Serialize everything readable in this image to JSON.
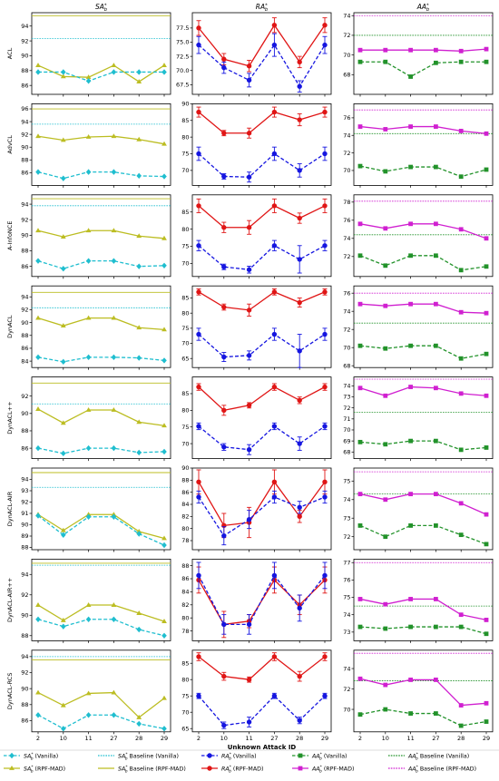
{
  "chart_data": {
    "type": "line",
    "x": [
      "2",
      "10",
      "11",
      "27",
      "28",
      "29"
    ],
    "xlabel": "Unknown Attack ID",
    "columns": [
      "SA*_b",
      "RA*_b",
      "AA*_b"
    ],
    "rows": [
      "ACL",
      "AdvCL",
      "A-InfoNCE",
      "DynACL",
      "DynACL++",
      "DynACL-AIR",
      "DynACL-AIR++",
      "DynACL-RCS"
    ],
    "legend": [
      "SA*_b (Vanilla)",
      "SA*_b Baseline (Vanilla)",
      "RA*_b (Vanilla)",
      "AA*_b (Vanilla)",
      "AA*_b Baseline (Vanilla)",
      "SA*_b (RPF-MAD)",
      "SA*_b Baseline (RPF-MAD)",
      "RA*_b (RPF-MAD)",
      "AA*_b (RPF-MAD)",
      "AA*_b Baseline (RPF-MAD)"
    ],
    "colors": {
      "sa_vanilla": "#1fbecf",
      "sa_rpf": "#bcbd22",
      "ra_vanilla": "#1515e0",
      "ra_rpf": "#e01515",
      "aa_vanilla": "#22922a",
      "aa_rpf": "#d020d0"
    },
    "panels": [
      [
        {
          "ylim": [
            84.8,
            95.8
          ],
          "yticks": [
            86,
            88,
            90,
            92,
            94
          ],
          "baseline_vanilla": 92.3,
          "baseline_rpf": 95.4,
          "vanilla": [
            87.8,
            87.8,
            86.6,
            87.8,
            87.8,
            87.8
          ],
          "rpf": [
            88.7,
            87.2,
            87.1,
            88.7,
            86.5,
            88.7
          ]
        },
        {
          "ylim": [
            65.8,
            80.2
          ],
          "yticks": [
            67.5,
            70.0,
            72.5,
            75.0,
            77.5
          ],
          "vanilla": [
            74.5,
            70.5,
            68.3,
            74.5,
            67.2,
            74.5
          ],
          "vanilla_err": [
            1.5,
            1.0,
            1.2,
            2.0,
            1.0,
            1.5
          ],
          "rpf": [
            77.5,
            72.0,
            70.8,
            78.0,
            71.5,
            78.0
          ],
          "rpf_err": [
            1.3,
            1.0,
            1.0,
            1.3,
            1.0,
            1.3
          ]
        },
        {
          "ylim": [
            66.0,
            74.3
          ],
          "yticks": [
            68,
            70,
            72,
            74
          ],
          "baseline_vanilla": 72.0,
          "baseline_rpf": 74.0,
          "vanilla": [
            69.3,
            69.3,
            67.8,
            69.2,
            69.3,
            69.3
          ],
          "rpf": [
            70.5,
            70.5,
            70.5,
            70.5,
            70.4,
            70.6
          ]
        }
      ],
      [
        {
          "ylim": [
            84.0,
            96.8
          ],
          "yticks": [
            86,
            88,
            90,
            92,
            94,
            96
          ],
          "baseline_vanilla": 93.6,
          "baseline_rpf": 96.0,
          "vanilla": [
            86.1,
            85.1,
            86.1,
            86.1,
            85.5,
            85.4
          ],
          "rpf": [
            91.7,
            91.1,
            91.6,
            91.7,
            91.2,
            90.5
          ]
        },
        {
          "ylim": [
            65.5,
            90.0
          ],
          "yticks": [
            70,
            75,
            80,
            85,
            90
          ],
          "vanilla": [
            75.0,
            68.2,
            68.0,
            75.0,
            70.0,
            75.0
          ],
          "vanilla_err": [
            2.0,
            0.8,
            1.5,
            2.0,
            2.0,
            2.0
          ],
          "rpf": [
            87.5,
            81.2,
            81.2,
            87.5,
            85.2,
            87.5
          ],
          "rpf_err": [
            1.5,
            0.8,
            1.5,
            1.5,
            1.8,
            1.5
          ]
        },
        {
          "ylim": [
            68.3,
            77.6
          ],
          "yticks": [
            70,
            72,
            74,
            76
          ],
          "baseline_vanilla": 74.2,
          "baseline_rpf": 76.9,
          "vanilla": [
            70.5,
            69.9,
            70.4,
            70.4,
            69.3,
            70.1
          ],
          "rpf": [
            75.0,
            74.7,
            75.0,
            75.0,
            74.5,
            74.2
          ]
        }
      ],
      [
        {
          "ylim": [
            84.7,
            95.2
          ],
          "yticks": [
            86,
            88,
            90,
            92,
            94
          ],
          "baseline_vanilla": 93.8,
          "baseline_rpf": 94.7,
          "vanilla": [
            86.7,
            85.7,
            86.7,
            86.7,
            86.0,
            86.1
          ],
          "rpf": [
            90.6,
            89.8,
            90.6,
            90.6,
            89.9,
            89.6
          ]
        },
        {
          "ylim": [
            66.2,
            90.0
          ],
          "yticks": [
            70,
            75,
            80,
            85
          ],
          "vanilla": [
            75.2,
            69.0,
            68.2,
            75.2,
            71.2,
            75.2
          ],
          "vanilla_err": [
            1.5,
            0.8,
            1.0,
            1.5,
            4.0,
            1.5
          ],
          "rpf": [
            86.8,
            80.5,
            80.5,
            86.8,
            83.2,
            86.8
          ],
          "rpf_err": [
            2.0,
            1.5,
            2.0,
            2.0,
            1.5,
            2.0
          ]
        },
        {
          "ylim": [
            69.8,
            78.8
          ],
          "yticks": [
            72,
            74,
            76,
            78
          ],
          "baseline_vanilla": 74.4,
          "baseline_rpf": 78.1,
          "vanilla": [
            72.1,
            71.0,
            72.1,
            72.1,
            70.5,
            70.9
          ],
          "rpf": [
            75.6,
            75.1,
            75.6,
            75.6,
            75.0,
            74.0
          ]
        }
      ],
      [
        {
          "ylim": [
            83.0,
            95.7
          ],
          "yticks": [
            84,
            86,
            88,
            90,
            92,
            94
          ],
          "baseline_vanilla": 92.3,
          "baseline_rpf": 94.7,
          "vanilla": [
            84.6,
            83.9,
            84.6,
            84.6,
            84.5,
            84.1
          ],
          "rpf": [
            90.7,
            89.5,
            90.7,
            90.7,
            89.2,
            88.9
          ]
        },
        {
          "ylim": [
            62.0,
            89.0
          ],
          "yticks": [
            65,
            70,
            75,
            80,
            85
          ],
          "vanilla": [
            73.0,
            65.5,
            66.0,
            73.0,
            67.5,
            73.0
          ],
          "vanilla_err": [
            2.0,
            1.5,
            1.5,
            2.0,
            5.5,
            2.0
          ],
          "rpf": [
            87.0,
            82.0,
            81.0,
            87.0,
            83.5,
            87.0
          ],
          "rpf_err": [
            1.0,
            1.0,
            2.0,
            1.0,
            1.5,
            1.0
          ]
        },
        {
          "ylim": [
            67.8,
            76.8
          ],
          "yticks": [
            68,
            70,
            72,
            74,
            76
          ],
          "baseline_vanilla": 72.7,
          "baseline_rpf": 76.0,
          "vanilla": [
            70.2,
            69.9,
            70.2,
            70.2,
            68.8,
            69.3
          ],
          "rpf": [
            74.8,
            74.6,
            74.8,
            74.8,
            73.9,
            73.8
          ]
        }
      ],
      [
        {
          "ylim": [
            84.8,
            94.2
          ],
          "yticks": [
            86,
            88,
            90,
            92
          ],
          "baseline_vanilla": 91.1,
          "baseline_rpf": 93.5,
          "vanilla": [
            86.0,
            85.4,
            86.0,
            86.0,
            85.5,
            85.6
          ],
          "rpf": [
            90.5,
            88.9,
            90.4,
            90.4,
            89.0,
            88.6
          ]
        },
        {
          "ylim": [
            65.5,
            90.0
          ],
          "yticks": [
            70,
            75,
            80,
            85
          ],
          "vanilla": [
            75.2,
            69.0,
            68.2,
            75.2,
            70.0,
            75.2
          ],
          "vanilla_err": [
            1.0,
            1.0,
            1.5,
            1.0,
            2.0,
            1.0
          ],
          "rpf": [
            87.0,
            80.0,
            81.5,
            87.0,
            83.0,
            87.0
          ],
          "rpf_err": [
            1.0,
            1.5,
            0.8,
            1.0,
            1.0,
            1.0
          ]
        },
        {
          "ylim": [
            67.4,
            74.8
          ],
          "yticks": [
            68,
            69,
            70,
            71,
            72,
            73,
            74
          ],
          "baseline_vanilla": 71.6,
          "baseline_rpf": 74.6,
          "vanilla": [
            68.9,
            68.7,
            69.0,
            69.0,
            68.2,
            68.4
          ],
          "rpf": [
            73.8,
            73.1,
            73.9,
            73.8,
            73.3,
            73.1
          ]
        }
      ],
      [
        {
          "ylim": [
            87.8,
            95.0
          ],
          "yticks": [
            88,
            89,
            90,
            91,
            92,
            93,
            94
          ],
          "baseline_vanilla": 93.3,
          "baseline_rpf": 94.6,
          "vanilla": [
            90.8,
            89.1,
            90.7,
            90.7,
            89.2,
            88.2
          ],
          "rpf": [
            90.9,
            89.5,
            90.9,
            90.9,
            89.4,
            88.8
          ]
        },
        {
          "ylim": [
            76.5,
            90.0
          ],
          "yticks": [
            78,
            80,
            82,
            84,
            86,
            88,
            90
          ],
          "vanilla": [
            85.2,
            78.8,
            81.5,
            85.2,
            83.5,
            85.2
          ],
          "vanilla_err": [
            1.0,
            1.5,
            1.5,
            1.0,
            1.0,
            1.0
          ],
          "rpf": [
            87.7,
            80.5,
            81.0,
            87.7,
            82.0,
            87.7
          ],
          "rpf_err": [
            2.0,
            2.0,
            2.5,
            2.0,
            1.0,
            2.0
          ]
        },
        {
          "ylim": [
            71.3,
            75.7
          ],
          "yticks": [
            72,
            73,
            74,
            75
          ],
          "baseline_vanilla": 74.3,
          "baseline_rpf": 75.5,
          "vanilla": [
            72.6,
            72.0,
            72.6,
            72.6,
            72.1,
            71.6
          ],
          "rpf": [
            74.3,
            74.0,
            74.3,
            74.3,
            73.8,
            73.2
          ]
        }
      ],
      [
        {
          "ylim": [
            87.5,
            95.5
          ],
          "yticks": [
            88,
            90,
            92,
            94
          ],
          "baseline_vanilla": 94.9,
          "baseline_rpf": 95.1,
          "vanilla": [
            89.6,
            88.9,
            89.6,
            89.6,
            88.6,
            88.0
          ],
          "rpf": [
            91.0,
            89.5,
            91.0,
            91.0,
            90.2,
            89.4
          ]
        },
        {
          "ylim": [
            76.5,
            89.0
          ],
          "yticks": [
            78,
            80,
            82,
            84,
            86,
            88
          ],
          "vanilla": [
            86.5,
            79.0,
            79.0,
            86.5,
            81.5,
            86.5
          ],
          "vanilla_err": [
            2.0,
            1.5,
            1.5,
            2.0,
            2.0,
            2.0
          ],
          "rpf": [
            85.8,
            79.0,
            79.5,
            85.8,
            82.0,
            85.8
          ],
          "rpf_err": [
            2.0,
            2.0,
            1.0,
            2.0,
            1.5,
            2.0
          ]
        },
        {
          "ylim": [
            72.5,
            77.2
          ],
          "yticks": [
            73,
            74,
            75,
            76,
            77
          ],
          "baseline_vanilla": 74.5,
          "baseline_rpf": 77.0,
          "vanilla": [
            73.3,
            73.2,
            73.3,
            73.3,
            73.3,
            72.9
          ],
          "rpf": [
            74.9,
            74.6,
            74.9,
            74.9,
            74.0,
            73.7
          ]
        }
      ],
      [
        {
          "ylim": [
            84.6,
            94.8
          ],
          "yticks": [
            86,
            88,
            90,
            92,
            94
          ],
          "baseline_vanilla": 94.0,
          "baseline_rpf": 93.6,
          "vanilla": [
            86.7,
            85.0,
            86.7,
            86.7,
            85.6,
            85.0
          ],
          "rpf": [
            89.5,
            87.9,
            89.4,
            89.5,
            86.4,
            88.8
          ]
        },
        {
          "ylim": [
            64.0,
            89.0
          ],
          "yticks": [
            65,
            70,
            75,
            80,
            85
          ],
          "vanilla": [
            75.0,
            66.0,
            67.0,
            75.0,
            67.5,
            75.0
          ],
          "vanilla_err": [
            0.8,
            1.0,
            1.5,
            0.8,
            1.0,
            0.8
          ],
          "rpf": [
            87.0,
            81.0,
            80.0,
            87.0,
            81.0,
            87.0
          ],
          "rpf_err": [
            1.2,
            1.2,
            0.8,
            1.2,
            1.5,
            1.2
          ]
        },
        {
          "ylim": [
            67.8,
            75.8
          ],
          "yticks": [
            70,
            72,
            74
          ],
          "baseline_vanilla": 72.8,
          "baseline_rpf": 75.5,
          "vanilla": [
            69.5,
            70.0,
            69.6,
            69.6,
            68.4,
            68.8
          ],
          "rpf": [
            73.0,
            72.4,
            72.9,
            72.9,
            70.4,
            70.6
          ]
        }
      ]
    ]
  }
}
